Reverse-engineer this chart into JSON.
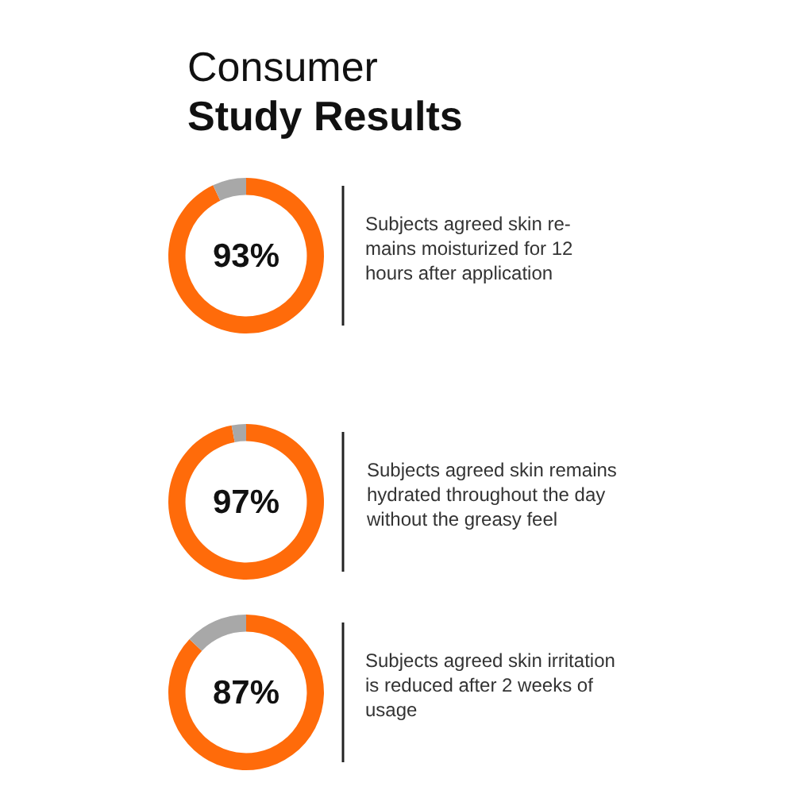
{
  "chart_data": [
    {
      "type": "donut",
      "title": "Consumer",
      "subtitle": "Study Results",
      "categories": [
        null,
        null
      ],
      "values": [
        93,
        7
      ],
      "colors": [
        "#ff6b0a",
        "#a8a8a8"
      ],
      "value_labels": [
        "93%",
        null
      ],
      "annotations": [
        "Subjects agreed skin re-\nmains moisturized for 12\nhours after application"
      ]
    },
    {
      "type": "donut",
      "categories": [
        null,
        null
      ],
      "values": [
        97,
        3
      ],
      "colors": [
        "#ff6b0a",
        "#a8a8a8"
      ],
      "value_labels": [
        "97%",
        null
      ],
      "annotations": [
        "Subjects agreed skin remains\nhydrated throughout the day\nwithout the greasy feel"
      ]
    },
    {
      "type": "donut",
      "categories": [
        null,
        null
      ],
      "values": [
        87,
        13
      ],
      "colors": [
        "#ff6b0a",
        "#a8a8a8"
      ],
      "value_labels": [
        "87%",
        null
      ],
      "annotations": [
        "Subjects agreed skin irritation\nis reduced after 2 weeks of\nusage"
      ]
    }
  ]
}
